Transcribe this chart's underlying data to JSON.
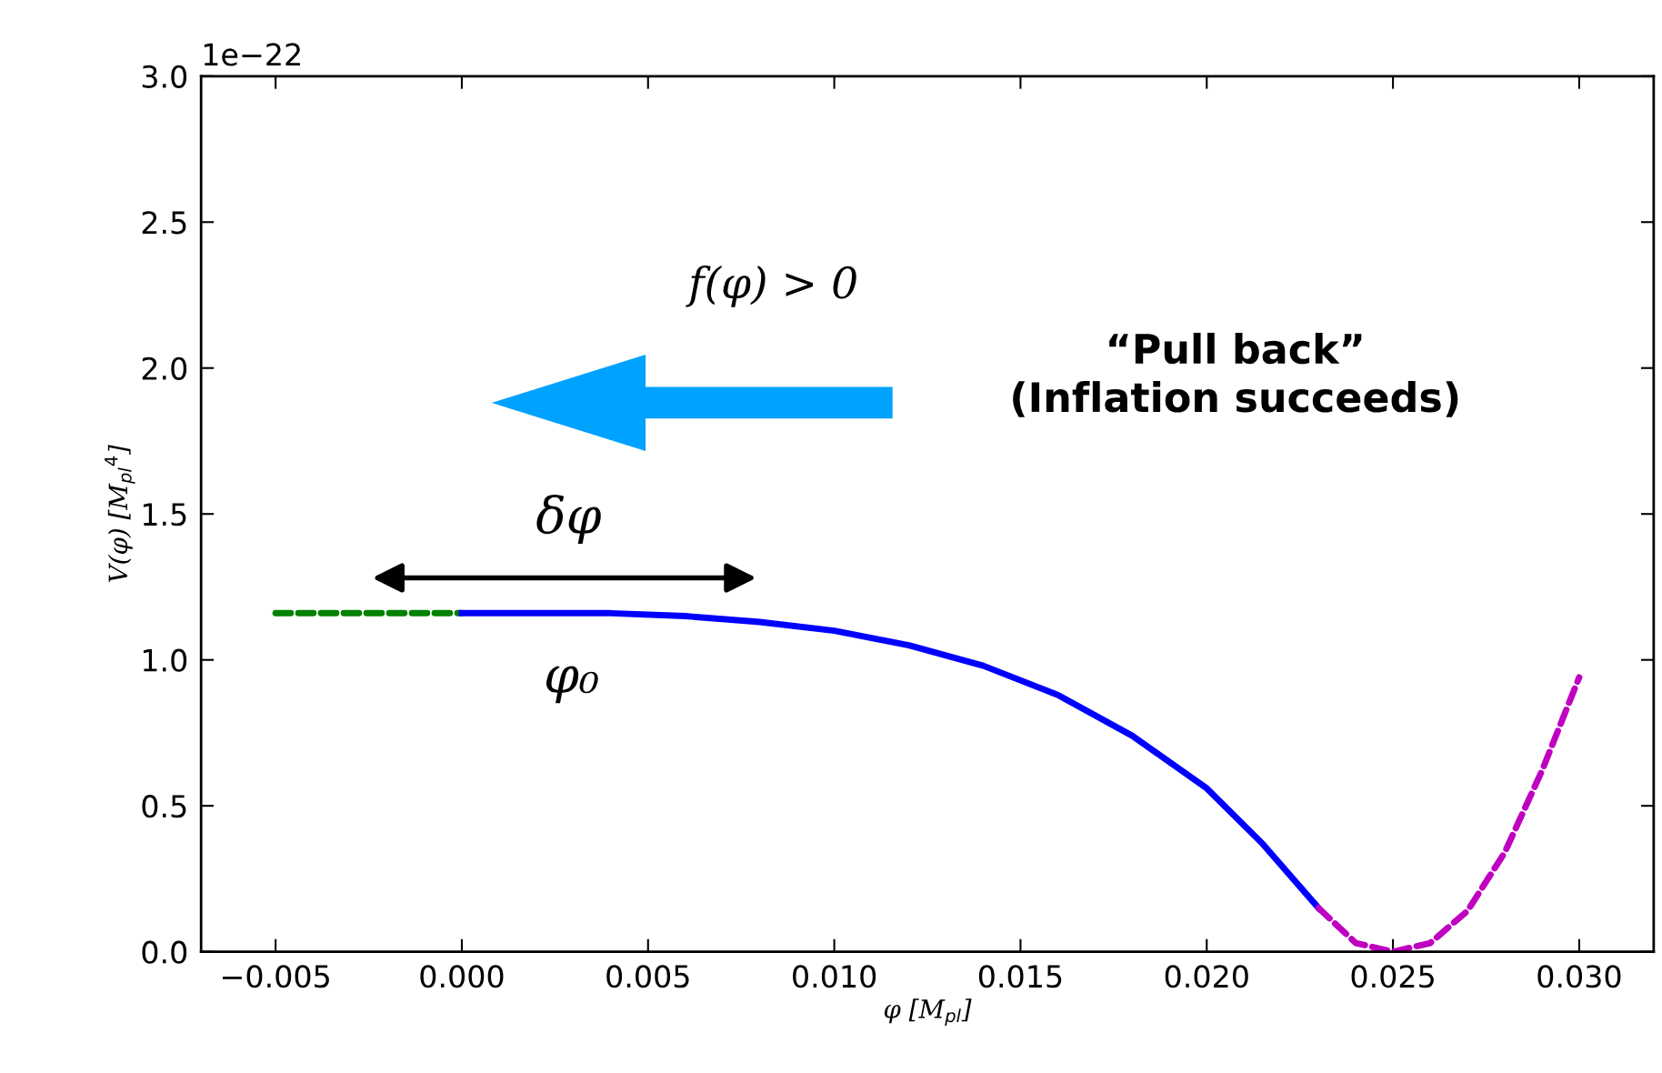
{
  "chart_data": {
    "type": "line",
    "xlabel": "φ [M$_{pl}$]",
    "ylabel": "V(φ) [M$_{pl}$$^{4}$]",
    "xlim": [
      -0.007,
      0.032
    ],
    "xticks": [
      {
        "value": -0.005,
        "label": "−0.005"
      },
      {
        "value": 0.0,
        "label": "0.000"
      },
      {
        "value": 0.005,
        "label": "0.005"
      },
      {
        "value": 0.01,
        "label": "0.010"
      },
      {
        "value": 0.015,
        "label": "0.015"
      },
      {
        "value": 0.02,
        "label": "0.020"
      },
      {
        "value": 0.025,
        "label": "0.025"
      },
      {
        "value": 0.03,
        "label": "0.030"
      }
    ],
    "ylim": [
      0,
      3.0
    ],
    "yticks": [
      {
        "value": 0,
        "label": "0.0"
      },
      {
        "value": 0.5,
        "label": "0.5"
      },
      {
        "value": 1.0,
        "label": "1.0"
      },
      {
        "value": 1.5,
        "label": "1.5"
      },
      {
        "value": 2.0,
        "label": "2.0"
      },
      {
        "value": 2.5,
        "label": "2.5"
      },
      {
        "value": 3.0,
        "label": "3.0"
      }
    ],
    "series": [
      {
        "color": "#008000",
        "line_style": "dashed",
        "x": [
          -0.005,
          0.0
        ],
        "values": [
          1.16,
          1.16
        ]
      },
      {
        "color": "#0000ff",
        "line_style": "solid",
        "x": [
          0.0,
          0.004,
          0.006,
          0.008,
          0.01,
          0.012,
          0.014,
          0.016,
          0.018,
          0.02,
          0.0215,
          0.023
        ],
        "values": [
          1.16,
          1.16,
          1.15,
          1.13,
          1.1,
          1.05,
          0.98,
          0.88,
          0.74,
          0.56,
          0.37,
          0.15
        ]
      },
      {
        "color": "#c000c0",
        "line_style": "dashed",
        "x": [
          0.023,
          0.024,
          0.025,
          0.026,
          0.027,
          0.028,
          0.029,
          0.03
        ],
        "values": [
          0.15,
          0.03,
          0.0,
          0.03,
          0.14,
          0.34,
          0.62,
          0.94
        ]
      }
    ],
    "annotations": [
      "1e−22",
      "f(φ) > 0",
      "“Pull back”\n(Inflation succeeds)",
      "δφ",
      "φ₀"
    ],
    "grid": false,
    "legend": false,
    "marker": "none"
  }
}
